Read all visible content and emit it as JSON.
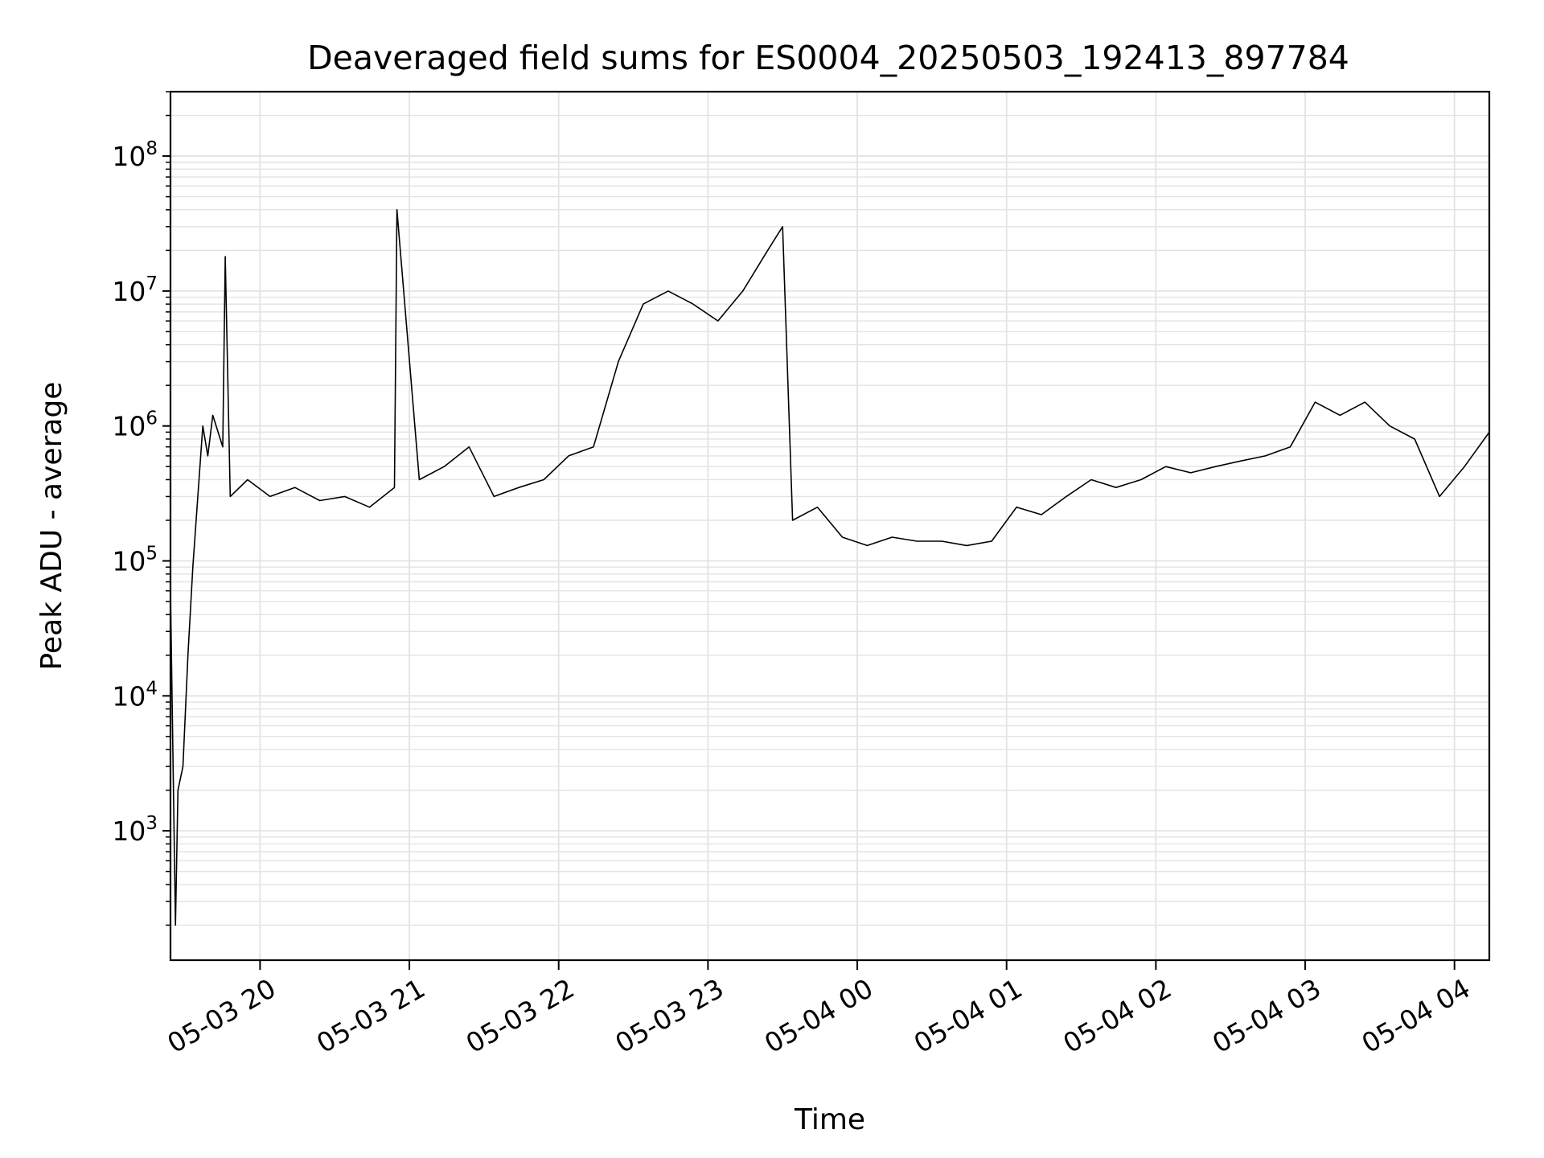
{
  "chart_data": {
    "type": "line",
    "title": "Deaveraged field sums for ES0004_20250503_192413_897784",
    "xlabel": "Time",
    "ylabel": "Peak ADU - average",
    "yscale": "log",
    "grid": true,
    "xlim": [
      "2025-05-03 19:24",
      "2025-05-04 04:14"
    ],
    "ylim": [
      110,
      300000000
    ],
    "x_ticks": [
      "05-03 20",
      "05-03 21",
      "05-03 22",
      "05-03 23",
      "05-04 00",
      "05-04 01",
      "05-04 02",
      "05-04 03",
      "05-04 04"
    ],
    "y_ticks": [
      {
        "base": "10",
        "exp": "3",
        "value": 1000
      },
      {
        "base": "10",
        "exp": "4",
        "value": 10000
      },
      {
        "base": "10",
        "exp": "5",
        "value": 100000
      },
      {
        "base": "10",
        "exp": "6",
        "value": 1000000
      },
      {
        "base": "10",
        "exp": "7",
        "value": 10000000
      },
      {
        "base": "10",
        "exp": "8",
        "value": 100000000
      }
    ],
    "series": [
      {
        "color": "#000000",
        "values": [
          [
            "2025-05-03 19:24",
            60000
          ],
          [
            "2025-05-03 19:26",
            200
          ],
          [
            "2025-05-03 19:27",
            2000
          ],
          [
            "2025-05-03 19:29",
            3000
          ],
          [
            "2025-05-03 19:31",
            20000
          ],
          [
            "2025-05-03 19:33",
            90000
          ],
          [
            "2025-05-03 19:35",
            300000
          ],
          [
            "2025-05-03 19:37",
            1000000
          ],
          [
            "2025-05-03 19:39",
            600000
          ],
          [
            "2025-05-03 19:41",
            1200000
          ],
          [
            "2025-05-03 19:45",
            700000
          ],
          [
            "2025-05-03 19:46",
            18000000
          ],
          [
            "2025-05-03 19:48",
            300000
          ],
          [
            "2025-05-03 19:55",
            400000
          ],
          [
            "2025-05-03 20:04",
            300000
          ],
          [
            "2025-05-03 20:14",
            350000
          ],
          [
            "2025-05-03 20:24",
            280000
          ],
          [
            "2025-05-03 20:34",
            300000
          ],
          [
            "2025-05-03 20:44",
            250000
          ],
          [
            "2025-05-03 20:54",
            350000
          ],
          [
            "2025-05-03 20:55",
            40000000
          ],
          [
            "2025-05-03 21:04",
            400000
          ],
          [
            "2025-05-03 21:14",
            500000
          ],
          [
            "2025-05-03 21:24",
            700000
          ],
          [
            "2025-05-03 21:34",
            300000
          ],
          [
            "2025-05-03 21:44",
            350000
          ],
          [
            "2025-05-03 21:54",
            400000
          ],
          [
            "2025-05-03 22:04",
            600000
          ],
          [
            "2025-05-03 22:14",
            700000
          ],
          [
            "2025-05-03 22:24",
            3000000
          ],
          [
            "2025-05-03 22:34",
            8000000
          ],
          [
            "2025-05-03 22:44",
            10000000
          ],
          [
            "2025-05-03 22:54",
            8000000
          ],
          [
            "2025-05-03 23:04",
            6000000
          ],
          [
            "2025-05-03 23:14",
            10000000
          ],
          [
            "2025-05-03 23:24",
            20000000
          ],
          [
            "2025-05-03 23:30",
            30000000
          ],
          [
            "2025-05-03 23:34",
            200000
          ],
          [
            "2025-05-03 23:44",
            250000
          ],
          [
            "2025-05-03 23:54",
            150000
          ],
          [
            "2025-05-04 00:04",
            130000
          ],
          [
            "2025-05-04 00:14",
            150000
          ],
          [
            "2025-05-04 00:24",
            140000
          ],
          [
            "2025-05-04 00:34",
            140000
          ],
          [
            "2025-05-04 00:44",
            130000
          ],
          [
            "2025-05-04 00:54",
            140000
          ],
          [
            "2025-05-04 01:04",
            250000
          ],
          [
            "2025-05-04 01:14",
            220000
          ],
          [
            "2025-05-04 01:24",
            300000
          ],
          [
            "2025-05-04 01:34",
            400000
          ],
          [
            "2025-05-04 01:44",
            350000
          ],
          [
            "2025-05-04 01:54",
            400000
          ],
          [
            "2025-05-04 02:04",
            500000
          ],
          [
            "2025-05-04 02:14",
            450000
          ],
          [
            "2025-05-04 02:24",
            500000
          ],
          [
            "2025-05-04 02:34",
            550000
          ],
          [
            "2025-05-04 02:44",
            600000
          ],
          [
            "2025-05-04 02:54",
            700000
          ],
          [
            "2025-05-04 03:04",
            1500000
          ],
          [
            "2025-05-04 03:14",
            1200000
          ],
          [
            "2025-05-04 03:24",
            1500000
          ],
          [
            "2025-05-04 03:34",
            1000000
          ],
          [
            "2025-05-04 03:44",
            800000
          ],
          [
            "2025-05-04 03:54",
            300000
          ],
          [
            "2025-05-04 04:04",
            500000
          ],
          [
            "2025-05-04 04:14",
            900000
          ]
        ]
      }
    ]
  }
}
